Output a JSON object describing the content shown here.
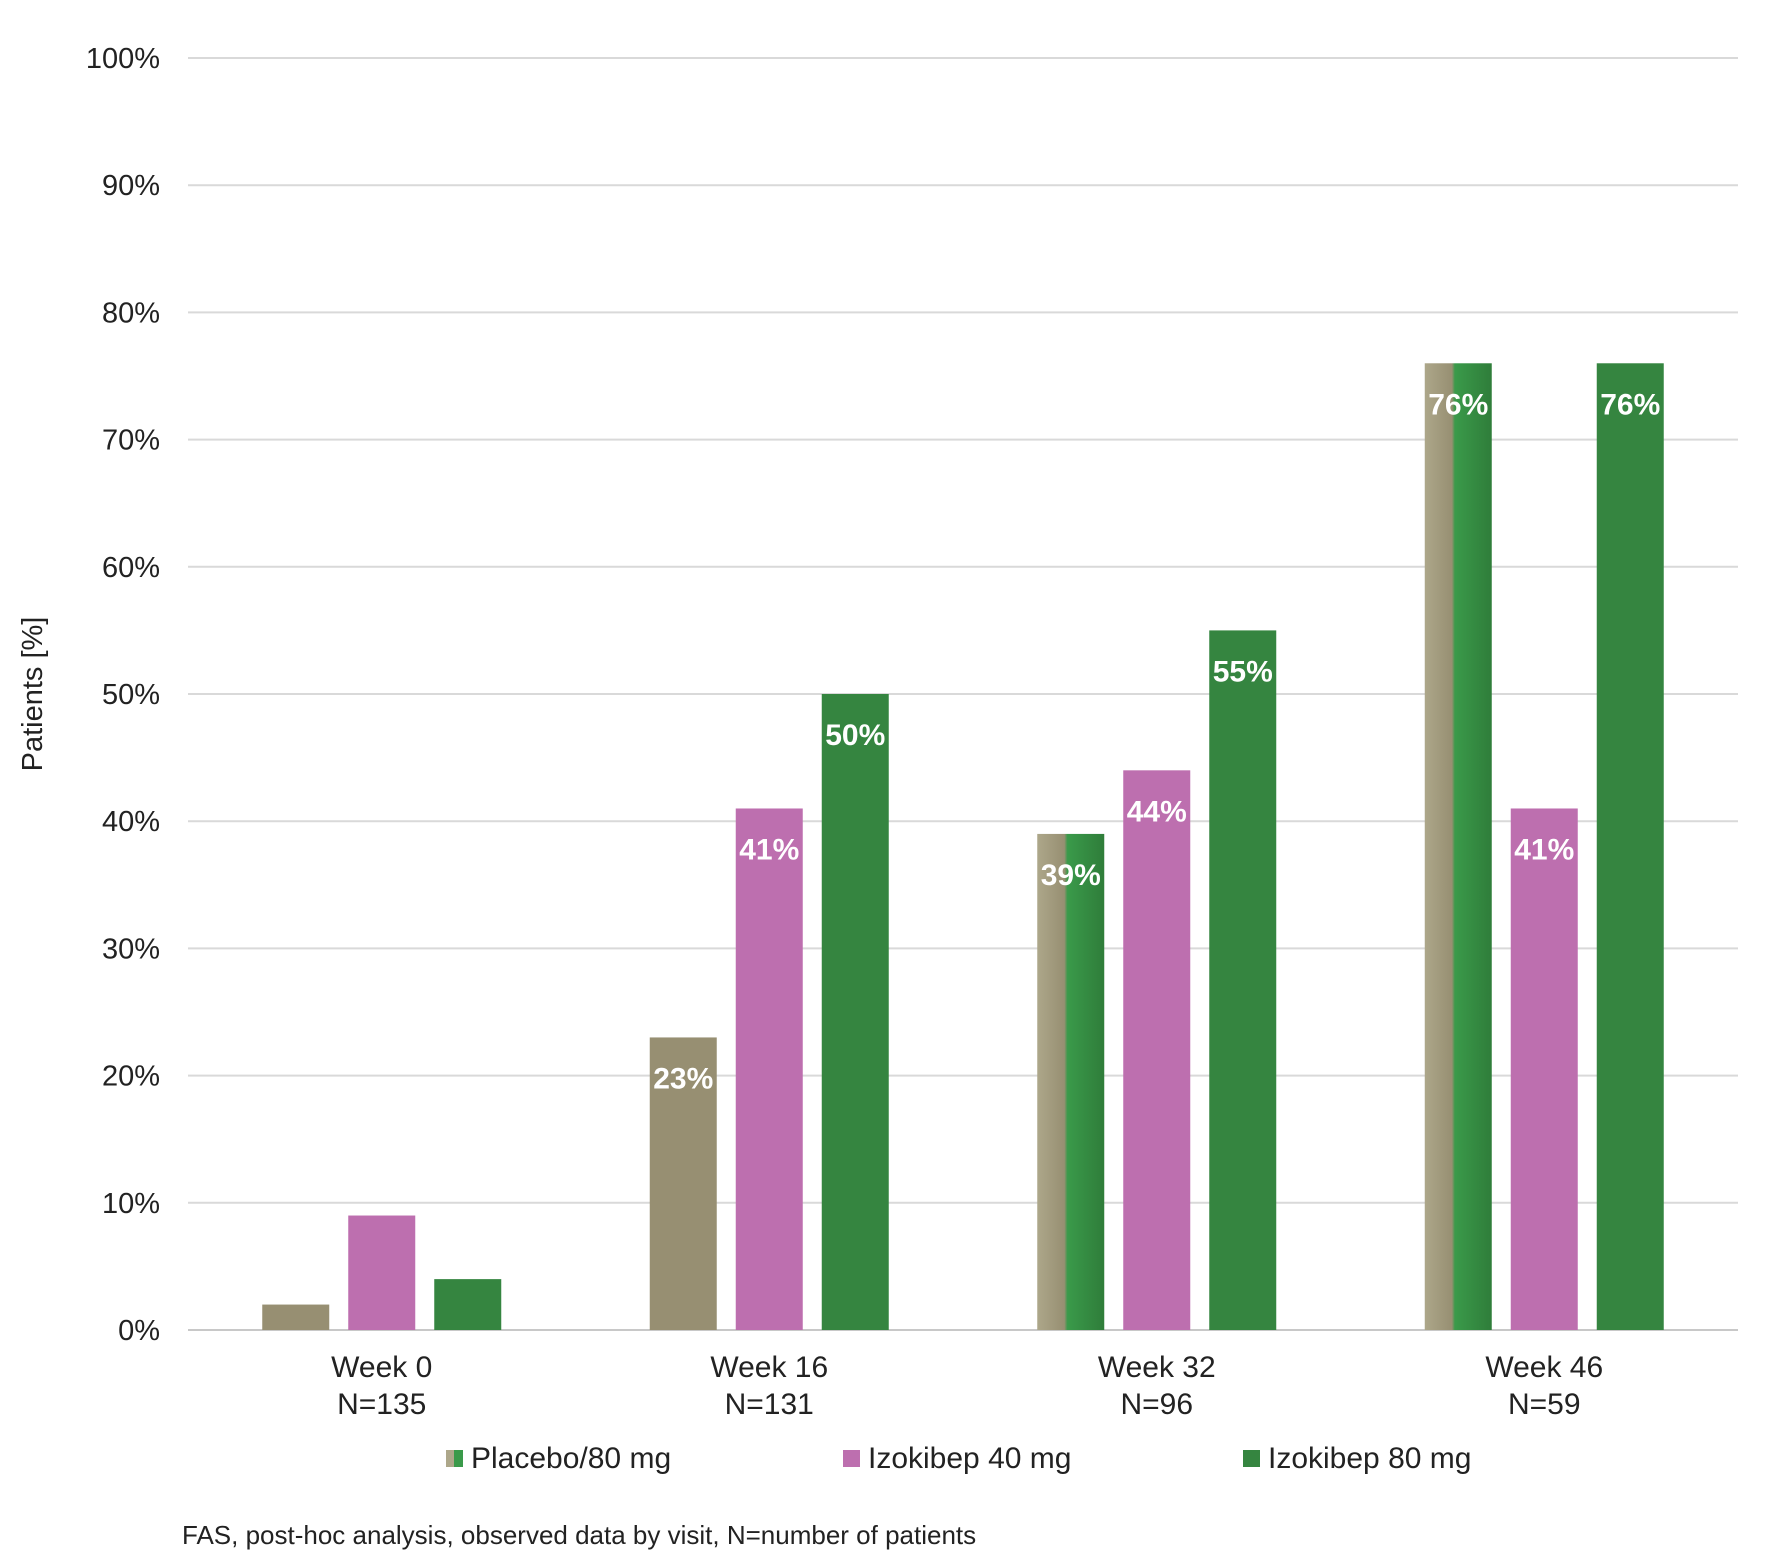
{
  "chart_data": {
    "type": "bar",
    "ylabel": "Patients [%]",
    "ylim": [
      0,
      100
    ],
    "yticks": [
      "0%",
      "10%",
      "20%",
      "30%",
      "40%",
      "50%",
      "60%",
      "70%",
      "80%",
      "90%",
      "100%"
    ],
    "grid": true,
    "legend_position": "bottom",
    "categories": [
      {
        "label": "Week 0",
        "n_label": "N=135"
      },
      {
        "label": "Week 16",
        "n_label": "N=131"
      },
      {
        "label": "Week 32",
        "n_label": "N=96"
      },
      {
        "label": "Week 46",
        "n_label": "N=59"
      }
    ],
    "series": [
      {
        "name": "Placebo/80 mg",
        "color": "#978f72",
        "switch_color": "#3a9a4a",
        "values": [
          2,
          23,
          39,
          76
        ],
        "labels": [
          "",
          "23%",
          "39%",
          "76%"
        ],
        "split_fraction": [
          0,
          0,
          0.45,
          0.45
        ]
      },
      {
        "name": "Izokibep 40 mg",
        "color": "#bd6faf",
        "values": [
          9,
          41,
          44,
          41
        ],
        "labels": [
          "",
          "41%",
          "44%",
          "41%"
        ]
      },
      {
        "name": "Izokibep 80 mg",
        "color": "#358540",
        "values": [
          4,
          50,
          55,
          76
        ],
        "labels": [
          "",
          "50%",
          "55%",
          "76%"
        ]
      }
    ]
  },
  "footnote": "FAS, post-hoc analysis, observed data by visit, N=number of patients"
}
